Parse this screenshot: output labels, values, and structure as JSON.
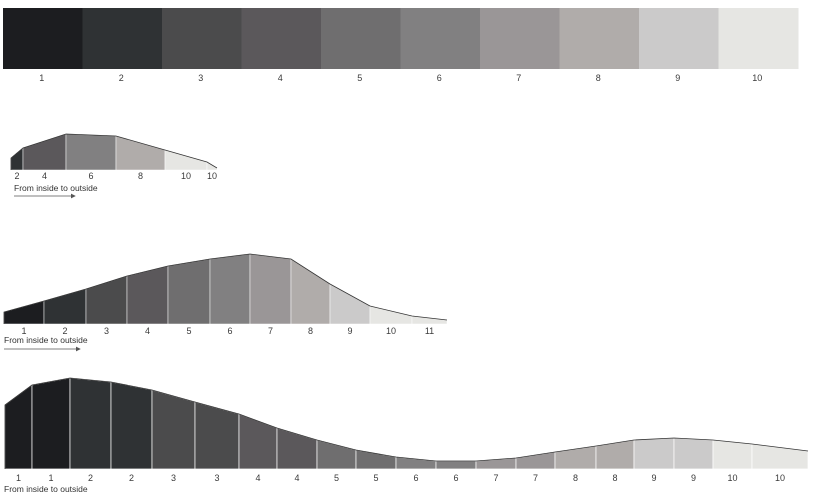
{
  "palette": {
    "name": "grey-scale",
    "colors": [
      "#1c1d20",
      "#2f3234",
      "#4b4b4c",
      "#5b585b",
      "#6f6e6f",
      "#818081",
      "#9a9697",
      "#b0acaa",
      "#cbcaca",
      "#e6e6e3"
    ],
    "labels": [
      "1",
      "2",
      "3",
      "4",
      "5",
      "6",
      "7",
      "8",
      "9",
      "10"
    ]
  },
  "profiles": [
    {
      "name": "profile-small",
      "levels": [
        2,
        4,
        6,
        8,
        10,
        10
      ],
      "labels": [
        "2",
        "4",
        "6",
        "8",
        "10",
        "10"
      ],
      "caption": "From inside to outside"
    },
    {
      "name": "profile-medium",
      "levels": [
        1,
        2,
        3,
        4,
        5,
        6,
        7,
        8,
        9,
        10,
        11
      ],
      "labels": [
        "1",
        "2",
        "3",
        "4",
        "5",
        "6",
        "7",
        "8",
        "9",
        "10",
        "11"
      ],
      "caption": "From inside to outside"
    },
    {
      "name": "profile-large",
      "levels": [
        1,
        1,
        2,
        2,
        3,
        3,
        4,
        4,
        5,
        5,
        6,
        6,
        7,
        7,
        8,
        8,
        9,
        9,
        10,
        10
      ],
      "labels": [
        "1",
        "1",
        "2",
        "2",
        "3",
        "3",
        "4",
        "4",
        "5",
        "5",
        "6",
        "6",
        "7",
        "7",
        "8",
        "8",
        "9",
        "9",
        "10",
        "10"
      ],
      "caption": "From inside to outside"
    }
  ]
}
